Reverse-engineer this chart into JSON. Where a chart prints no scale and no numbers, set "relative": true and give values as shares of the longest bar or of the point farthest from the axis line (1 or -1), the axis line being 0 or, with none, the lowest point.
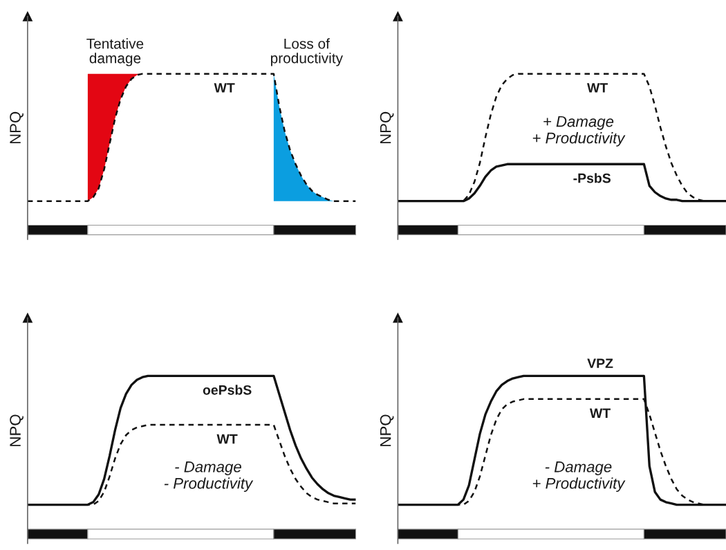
{
  "chart_data": [
    {
      "type": "line",
      "relative": true,
      "ylabel": "NPQ",
      "categories": [
        null,
        null,
        null,
        null,
        null,
        null,
        null,
        null,
        null,
        null,
        null,
        null,
        null,
        null,
        null,
        null,
        null,
        null,
        null,
        null,
        null,
        null,
        null,
        null,
        null,
        null,
        null,
        null,
        null,
        null,
        null,
        null,
        null,
        null,
        null,
        null,
        null,
        null,
        null,
        null,
        null,
        null,
        null,
        null,
        null,
        null,
        null,
        null,
        null,
        null,
        null,
        null,
        null,
        null,
        null,
        null,
        null,
        null,
        null,
        null,
        null
      ],
      "annotations": [
        "Tentative\ndamage",
        "Loss of\nproductivity"
      ],
      "series": [
        {
          "type": "area",
          "color": "#e30613",
          "values": [
            null,
            null,
            null,
            null,
            null,
            null,
            null,
            null,
            null,
            null,
            null,
            1,
            1,
            1,
            1,
            1,
            1,
            1,
            1,
            1,
            1,
            1,
            null,
            null,
            null,
            null,
            null,
            null,
            null,
            null,
            null,
            null,
            null,
            null,
            null,
            null,
            null,
            null,
            null,
            null,
            null,
            null,
            null,
            null,
            null,
            null,
            null,
            null,
            null,
            null,
            null,
            null,
            null,
            null,
            null,
            null,
            null,
            null,
            null,
            null,
            null
          ]
        },
        {
          "type": "area",
          "color": "#0b9ee0",
          "values": [
            null,
            null,
            null,
            null,
            null,
            null,
            null,
            null,
            null,
            null,
            null,
            null,
            null,
            null,
            null,
            null,
            null,
            null,
            null,
            null,
            null,
            null,
            null,
            null,
            null,
            null,
            null,
            null,
            null,
            null,
            null,
            null,
            null,
            null,
            null,
            null,
            null,
            null,
            null,
            null,
            null,
            null,
            null,
            null,
            null,
            1,
            0.75,
            0.55,
            0.4,
            0.29,
            0.2,
            0.13,
            0.08,
            0.05,
            0.03,
            0.01,
            0,
            0,
            null,
            null,
            null
          ]
        },
        {
          "name": "WT",
          "color": "#111111",
          "line_style": "dashed",
          "values": [
            0,
            0,
            0,
            0,
            0,
            0,
            0,
            0,
            0,
            0,
            0,
            0,
            0.03,
            0.1,
            0.25,
            0.45,
            0.65,
            0.8,
            0.9,
            0.96,
            0.99,
            1,
            1,
            1,
            1,
            1,
            1,
            1,
            1,
            1,
            1,
            1,
            1,
            1,
            1,
            1,
            1,
            1,
            1,
            1,
            1,
            1,
            1,
            1,
            1,
            1,
            0.75,
            0.55,
            0.4,
            0.29,
            0.2,
            0.13,
            0.08,
            0.05,
            0.03,
            0.01,
            0,
            0,
            0,
            0,
            0
          ]
        }
      ]
    },
    {
      "type": "line",
      "relative": true,
      "ylabel": "NPQ",
      "categories": [
        null,
        null,
        null,
        null,
        null,
        null,
        null,
        null,
        null,
        null,
        null,
        null,
        null,
        null,
        null,
        null,
        null,
        null,
        null,
        null,
        null,
        null,
        null,
        null,
        null,
        null,
        null,
        null,
        null,
        null,
        null,
        null,
        null,
        null,
        null,
        null,
        null,
        null,
        null,
        null,
        null,
        null,
        null,
        null,
        null,
        null,
        null,
        null,
        null,
        null,
        null,
        null,
        null,
        null,
        null,
        null,
        null,
        null,
        null,
        null,
        null
      ],
      "annotations": [
        "+ Damage\n+ Productivity"
      ],
      "series": [
        {
          "name": "WT",
          "color": "#111111",
          "line_style": "dashed",
          "values": [
            0,
            0,
            0,
            0,
            0,
            0,
            0,
            0,
            0,
            0,
            0,
            0,
            0,
            0.05,
            0.15,
            0.3,
            0.5,
            0.68,
            0.82,
            0.91,
            0.96,
            0.99,
            1,
            1,
            1,
            1,
            1,
            1,
            1,
            1,
            1,
            1,
            1,
            1,
            1,
            1,
            1,
            1,
            1,
            1,
            1,
            1,
            1,
            1,
            1,
            1,
            0.9,
            0.75,
            0.58,
            0.43,
            0.3,
            0.2,
            0.12,
            0.06,
            0.03,
            0.01,
            0,
            0,
            0,
            0,
            0
          ]
        },
        {
          "name": "-PsbS",
          "color": "#111111",
          "line_style": "solid",
          "values": [
            0,
            0,
            0,
            0,
            0,
            0,
            0,
            0,
            0,
            0,
            0,
            0,
            0,
            0.02,
            0.06,
            0.12,
            0.19,
            0.24,
            0.27,
            0.28,
            0.29,
            0.29,
            0.29,
            0.29,
            0.29,
            0.29,
            0.29,
            0.29,
            0.29,
            0.29,
            0.29,
            0.29,
            0.29,
            0.29,
            0.29,
            0.29,
            0.29,
            0.29,
            0.29,
            0.29,
            0.29,
            0.29,
            0.29,
            0.29,
            0.29,
            0.29,
            0.12,
            0.07,
            0.04,
            0.02,
            0.01,
            0.01,
            0,
            0,
            0,
            0,
            0,
            0,
            0,
            0,
            0
          ]
        }
      ]
    },
    {
      "type": "line",
      "relative": true,
      "ylabel": "NPQ",
      "categories": [
        null,
        null,
        null,
        null,
        null,
        null,
        null,
        null,
        null,
        null,
        null,
        null,
        null,
        null,
        null,
        null,
        null,
        null,
        null,
        null,
        null,
        null,
        null,
        null,
        null,
        null,
        null,
        null,
        null,
        null,
        null,
        null,
        null,
        null,
        null,
        null,
        null,
        null,
        null,
        null,
        null,
        null,
        null,
        null,
        null,
        null,
        null,
        null,
        null,
        null,
        null,
        null,
        null,
        null,
        null,
        null,
        null,
        null,
        null,
        null,
        null
      ],
      "annotations": [
        "- Damage\n- Productivity"
      ],
      "series": [
        {
          "name": "oePsbS",
          "color": "#111111",
          "line_style": "solid",
          "values": [
            0,
            0,
            0,
            0,
            0,
            0,
            0,
            0,
            0,
            0,
            0,
            0,
            0.02,
            0.08,
            0.2,
            0.38,
            0.58,
            0.75,
            0.86,
            0.93,
            0.97,
            0.99,
            1,
            1,
            1,
            1,
            1,
            1,
            1,
            1,
            1,
            1,
            1,
            1,
            1,
            1,
            1,
            1,
            1,
            1,
            1,
            1,
            1,
            1,
            1,
            1,
            0.86,
            0.72,
            0.58,
            0.46,
            0.36,
            0.28,
            0.21,
            0.16,
            0.12,
            0.09,
            0.07,
            0.06,
            0.05,
            0.04,
            0.04
          ]
        },
        {
          "name": "WT",
          "color": "#111111",
          "line_style": "dashed",
          "values": [
            0,
            0,
            0,
            0,
            0,
            0,
            0,
            0,
            0,
            0,
            0,
            0,
            0,
            0.03,
            0.1,
            0.22,
            0.36,
            0.47,
            0.54,
            0.58,
            0.6,
            0.61,
            0.62,
            0.62,
            0.62,
            0.62,
            0.62,
            0.62,
            0.62,
            0.62,
            0.62,
            0.62,
            0.62,
            0.62,
            0.62,
            0.62,
            0.62,
            0.62,
            0.62,
            0.62,
            0.62,
            0.62,
            0.62,
            0.62,
            0.62,
            0.62,
            0.5,
            0.38,
            0.28,
            0.2,
            0.14,
            0.09,
            0.06,
            0.04,
            0.03,
            0.02,
            0.01,
            0.01,
            0.01,
            0.01,
            0.01
          ]
        }
      ]
    },
    {
      "type": "line",
      "relative": true,
      "ylabel": "NPQ",
      "categories": [
        null,
        null,
        null,
        null,
        null,
        null,
        null,
        null,
        null,
        null,
        null,
        null,
        null,
        null,
        null,
        null,
        null,
        null,
        null,
        null,
        null,
        null,
        null,
        null,
        null,
        null,
        null,
        null,
        null,
        null,
        null,
        null,
        null,
        null,
        null,
        null,
        null,
        null,
        null,
        null,
        null,
        null,
        null,
        null,
        null,
        null,
        null,
        null,
        null,
        null,
        null,
        null,
        null,
        null,
        null,
        null,
        null,
        null,
        null,
        null,
        null
      ],
      "annotations": [
        "- Damage\n+ Productivity"
      ],
      "series": [
        {
          "name": "VPZ",
          "color": "#111111",
          "line_style": "solid",
          "values": [
            0,
            0,
            0,
            0,
            0,
            0,
            0,
            0,
            0,
            0,
            0,
            0,
            0.04,
            0.15,
            0.35,
            0.55,
            0.7,
            0.8,
            0.88,
            0.93,
            0.96,
            0.98,
            0.99,
            1,
            1,
            1,
            1,
            1,
            1,
            1,
            1,
            1,
            1,
            1,
            1,
            1,
            1,
            1,
            1,
            1,
            1,
            1,
            1,
            1,
            1,
            1,
            0.3,
            0.1,
            0.04,
            0.02,
            0.01,
            0,
            0,
            0,
            0,
            0,
            0,
            0,
            0,
            0,
            0
          ]
        },
        {
          "name": "WT",
          "color": "#111111",
          "line_style": "dashed",
          "values": [
            0,
            0,
            0,
            0,
            0,
            0,
            0,
            0,
            0,
            0,
            0,
            0,
            0,
            0.03,
            0.1,
            0.22,
            0.38,
            0.54,
            0.66,
            0.74,
            0.78,
            0.8,
            0.81,
            0.82,
            0.82,
            0.82,
            0.82,
            0.82,
            0.82,
            0.82,
            0.82,
            0.82,
            0.82,
            0.82,
            0.82,
            0.82,
            0.82,
            0.82,
            0.82,
            0.82,
            0.82,
            0.82,
            0.82,
            0.82,
            0.82,
            0.82,
            0.7,
            0.56,
            0.42,
            0.3,
            0.2,
            0.12,
            0.07,
            0.04,
            0.02,
            0.01,
            0,
            0,
            0,
            0,
            0
          ]
        }
      ]
    }
  ]
}
